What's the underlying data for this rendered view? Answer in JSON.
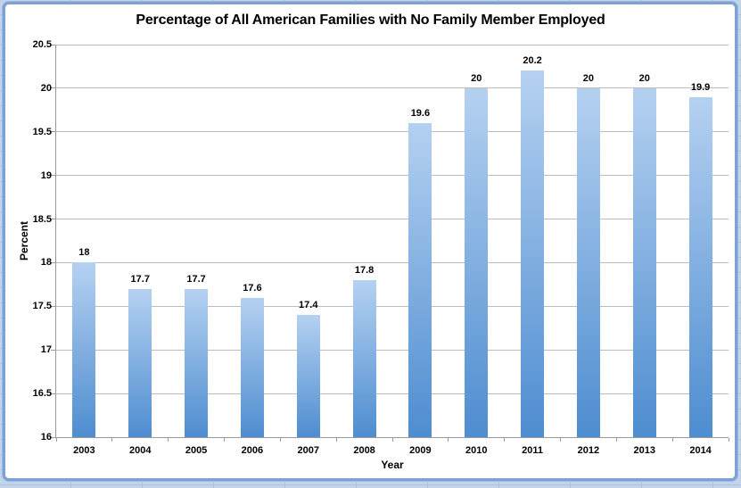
{
  "chart_data": {
    "type": "bar",
    "title": "Percentage of All American Families with No Family Member Employed",
    "xlabel": "Year",
    "ylabel": "Percent",
    "categories": [
      "2003",
      "2004",
      "2005",
      "2006",
      "2007",
      "2008",
      "2009",
      "2010",
      "2011",
      "2012",
      "2013",
      "2014"
    ],
    "values": [
      18,
      17.7,
      17.7,
      17.6,
      17.4,
      17.8,
      19.6,
      20,
      20.2,
      20,
      20,
      19.9
    ],
    "data_labels": [
      "18",
      "17.7",
      "17.7",
      "17.6",
      "17.4",
      "17.8",
      "19.6",
      "20",
      "20.2",
      "20",
      "20",
      "19.9"
    ],
    "ylim": [
      16,
      20.5
    ],
    "yticks": [
      16,
      16.5,
      17,
      17.5,
      18,
      18.5,
      19,
      19.5,
      20,
      20.5
    ],
    "ytick_labels": [
      "16",
      "16.5",
      "17",
      "17.5",
      "18",
      "18.5",
      "19",
      "19.5",
      "20",
      "20.5"
    ],
    "grid": true,
    "legend": false
  },
  "colors": {
    "bar_gradient_top": "#b5d1f1",
    "bar_gradient_bottom": "#4e8dd0",
    "plot_gridline": "#bdbdbd",
    "axis_line": "#9a9a9a",
    "chart_frame_border": "#7ca1d4",
    "worksheet_background": "#c3d4ea",
    "worksheet_gridline": "#aec3de",
    "text": "#000000"
  }
}
